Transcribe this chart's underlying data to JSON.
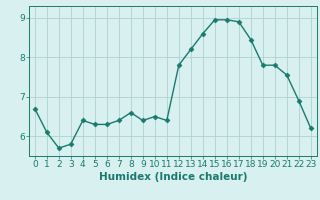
{
  "x": [
    0,
    1,
    2,
    3,
    4,
    5,
    6,
    7,
    8,
    9,
    10,
    11,
    12,
    13,
    14,
    15,
    16,
    17,
    18,
    19,
    20,
    21,
    22,
    23
  ],
  "y": [
    6.7,
    6.1,
    5.7,
    5.8,
    6.4,
    6.3,
    6.3,
    6.4,
    6.6,
    6.4,
    6.5,
    6.4,
    7.8,
    8.2,
    8.6,
    8.95,
    8.95,
    8.9,
    8.45,
    7.8,
    7.8,
    7.55,
    6.9,
    6.2
  ],
  "line_color": "#1a7a6e",
  "marker": "D",
  "marker_size": 2.5,
  "bg_color": "#d8f0f0",
  "grid_color": "#b0d0d0",
  "xlabel": "Humidex (Indice chaleur)",
  "ylim": [
    5.5,
    9.3
  ],
  "xlim": [
    -0.5,
    23.5
  ],
  "yticks": [
    6,
    7,
    8,
    9
  ],
  "xticks": [
    0,
    1,
    2,
    3,
    4,
    5,
    6,
    7,
    8,
    9,
    10,
    11,
    12,
    13,
    14,
    15,
    16,
    17,
    18,
    19,
    20,
    21,
    22,
    23
  ],
  "tick_color": "#1a7a6e",
  "label_color": "#1a7a6e",
  "spine_color": "#1a7a6e",
  "xlabel_fontsize": 7.5,
  "tick_fontsize": 6.5,
  "linewidth": 1.0
}
